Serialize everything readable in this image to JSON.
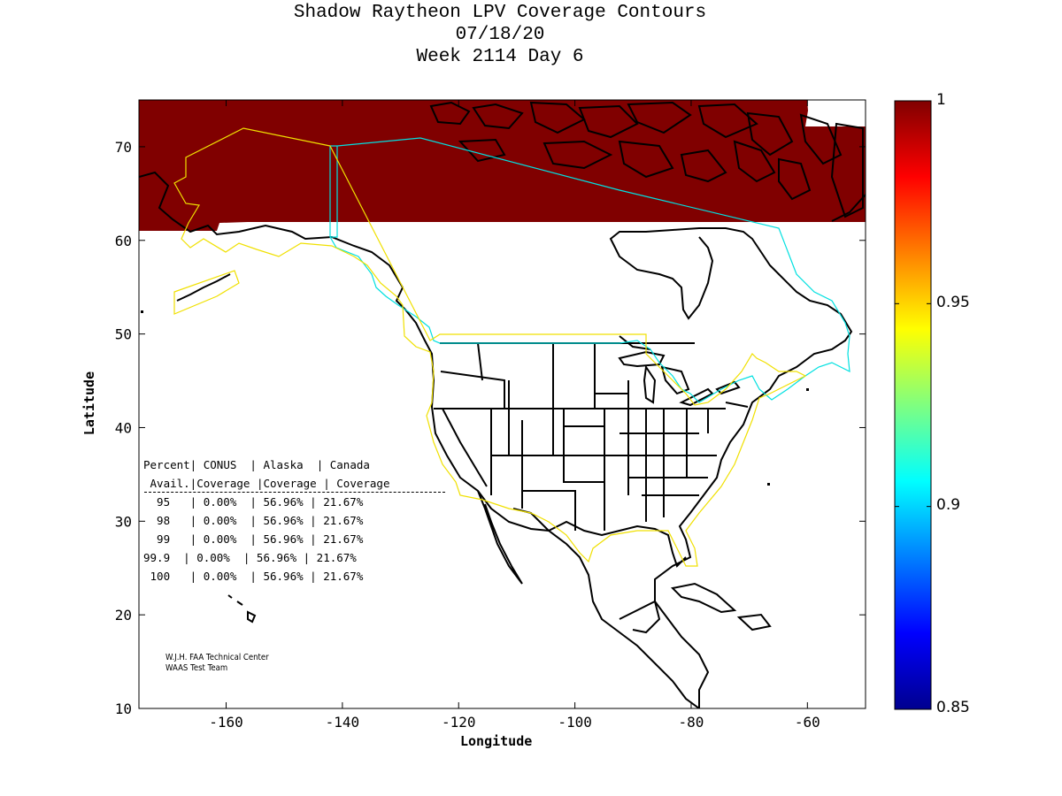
{
  "title": {
    "line1": "Shadow Raytheon LPV Coverage Contours",
    "line2": "07/18/20",
    "line3": "Week 2114 Day 6"
  },
  "axes": {
    "xlabel": "Longitude",
    "ylabel": "Latitude",
    "x_range": [
      -175,
      -50
    ],
    "y_range": [
      10,
      75
    ],
    "x_ticks": [
      -160,
      -140,
      -120,
      -100,
      -80,
      -60
    ],
    "y_ticks": [
      10,
      20,
      30,
      40,
      50,
      60,
      70
    ]
  },
  "colorbar": {
    "min": 0.85,
    "max": 1,
    "labels": [
      "1",
      "0.95",
      "0.9",
      "0.85"
    ],
    "colormap": "jet"
  },
  "coverage": {
    "full_availability_above_lat": 61.8,
    "full_availability_color": "#800000"
  },
  "colors": {
    "alaska_canada_boundary": "#00e0e0",
    "conus_alaska_boundary": "#f0e000",
    "land_outline": "#000000"
  },
  "table": {
    "header1": [
      "Percent|",
      " CONUS",
      "  | Alaska",
      "  | Canada"
    ],
    "header2": [
      " Avail.|Coverage",
      " |Coverage",
      " | Coverage"
    ],
    "rows": [
      {
        "avail": "95",
        "conus": "0.00%",
        "alaska": "56.96%",
        "canada": "21.67%"
      },
      {
        "avail": "98",
        "conus": "0.00%",
        "alaska": "56.96%",
        "canada": "21.67%"
      },
      {
        "avail": "99",
        "conus": "0.00%",
        "alaska": "56.96%",
        "canada": "21.67%"
      },
      {
        "avail": "99.9",
        "conus": "0.00%",
        "alaska": "56.96%",
        "canada": "21.67%"
      },
      {
        "avail": "100",
        "conus": "0.00%",
        "alaska": "56.96%",
        "canada": "21.67%"
      }
    ]
  },
  "credits": {
    "line1": "W.J.H. FAA Technical Center",
    "line2": "WAAS Test Team"
  }
}
